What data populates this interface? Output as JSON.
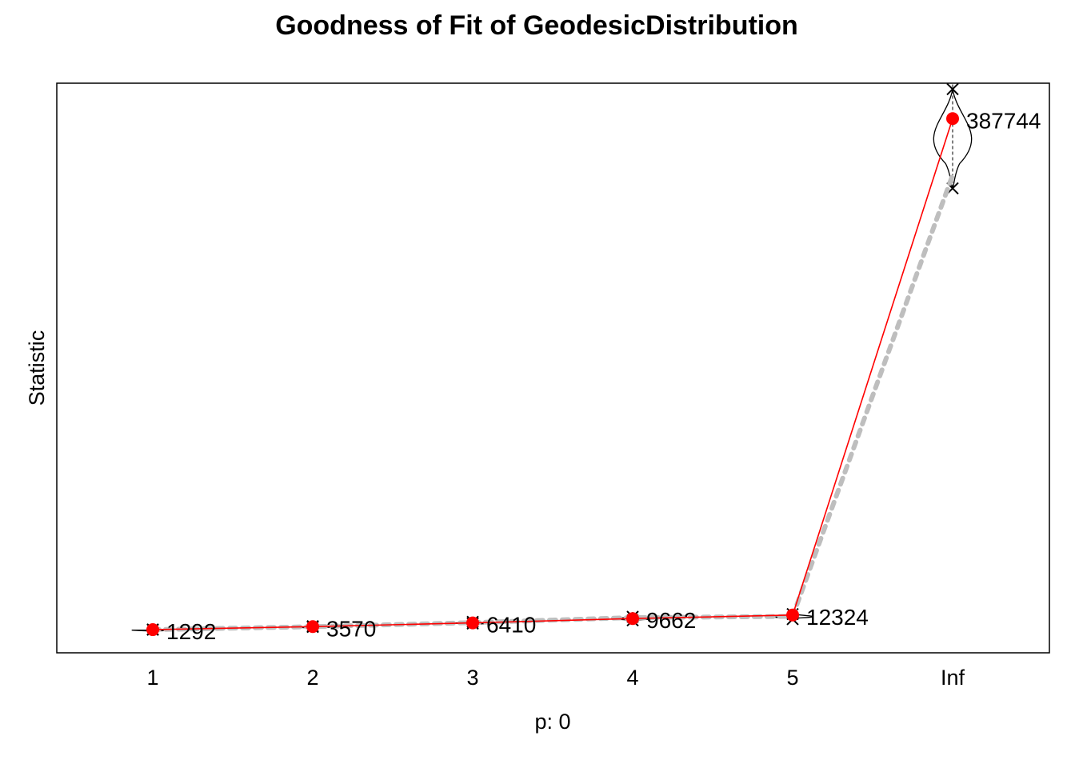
{
  "chart_data": {
    "type": "line",
    "title": "Goodness of Fit of GeodesicDistribution",
    "xlabel": "p: 0",
    "ylabel": "Statistic",
    "categories": [
      "1",
      "2",
      "3",
      "4",
      "5",
      "Inf"
    ],
    "ylim": [
      -500,
      400000
    ],
    "grid": false,
    "series": [
      {
        "role": "observed",
        "color": "#ff0000",
        "marker": "filled-circle",
        "values": [
          1292,
          3570,
          6410,
          9662,
          12324,
          387744
        ],
        "labels": [
          "1292",
          "3570",
          "6410",
          "9662",
          "12324",
          "387744"
        ]
      },
      {
        "role": "simulated-mean",
        "color": "#bebebe",
        "style": "dotted",
        "values": [
          1292,
          3500,
          6600,
          10400,
          11300,
          345000
        ]
      }
    ],
    "simulated_ranges": [
      {
        "min": 1200,
        "max": 1400
      },
      {
        "min": 3300,
        "max": 3900
      },
      {
        "min": 5900,
        "max": 7200
      },
      {
        "min": 8300,
        "max": 11000
      },
      {
        "min": 9200,
        "max": 13100
      },
      {
        "min": 335000,
        "max": 410000
      }
    ]
  }
}
